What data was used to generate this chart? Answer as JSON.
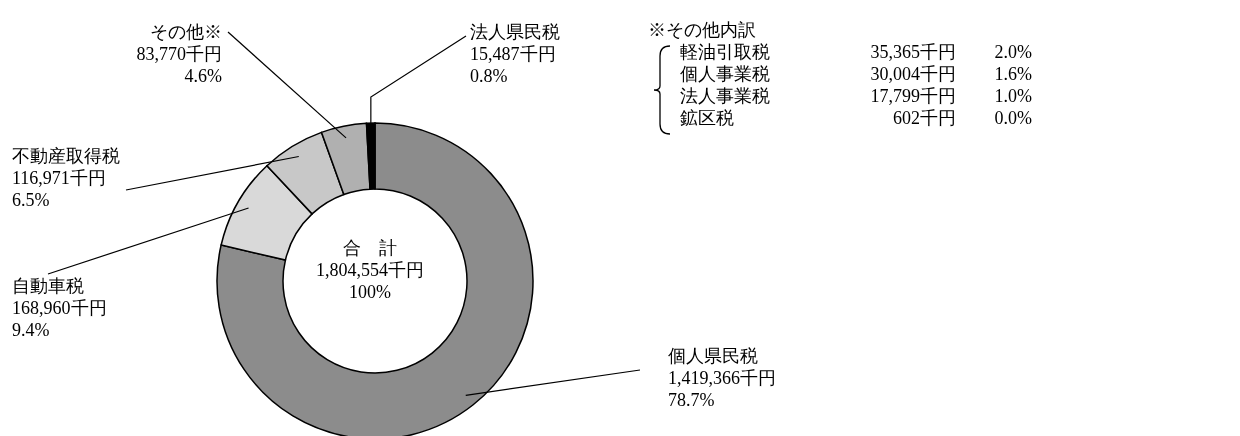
{
  "chart_data": {
    "type": "donut",
    "categories": [
      "個人県民税",
      "自動車税",
      "不動産取得税",
      "その他※",
      "法人県民税"
    ],
    "values": [
      1419366,
      168960,
      116971,
      83770,
      15487
    ],
    "value_labels": [
      "1,419,366千円\n78.7%",
      "168,960千円\n9.4%",
      "116,971千円\n6.5%",
      "83,770千円\n4.6%",
      "15,487千円\n0.8%"
    ],
    "colors": [
      "#8c8c8c",
      "#d9d9d9",
      "#c8c8c8",
      "#b0b0b0",
      "#000000"
    ],
    "annotations": [
      "合　計",
      "1,804,554千円",
      "100%",
      "※その他内訳",
      "軽油引取税",
      "35,365千円",
      "2.0%",
      "個人事業税",
      "30,004千円",
      "1.6%",
      "法人事業税",
      "17,799千円",
      "1.0%",
      "鉱区税",
      "602千円",
      "0.0%"
    ]
  }
}
